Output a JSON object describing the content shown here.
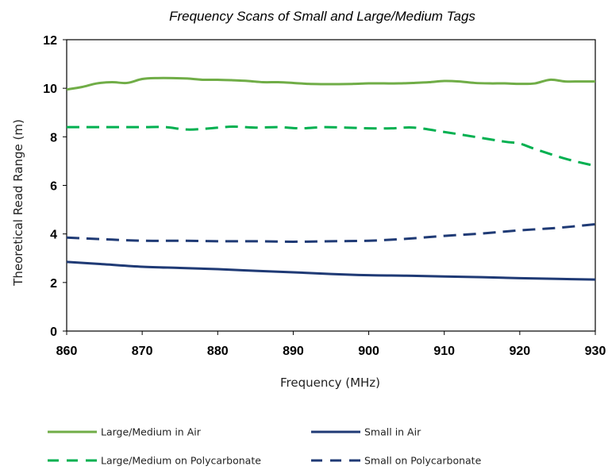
{
  "chart_data": {
    "type": "line",
    "title": "Frequency Scans of Small and Large/Medium Tags",
    "xlabel": "Frequency (MHz)",
    "ylabel": "Theoretical Read Range (m)",
    "xlim": [
      860,
      930
    ],
    "ylim": [
      0,
      12
    ],
    "x_ticks": [
      "860",
      "870",
      "880",
      "890",
      "900",
      "910",
      "920",
      "930"
    ],
    "y_ticks": [
      "0",
      "2",
      "4",
      "6",
      "8",
      "10",
      "12"
    ],
    "grid": false,
    "legend_position": "bottom",
    "series": [
      {
        "name": "Large/Medium in Air",
        "color": "#70ad47",
        "style": "solid",
        "x": [
          860,
          862,
          864,
          866,
          868,
          870,
          872,
          874,
          876,
          878,
          880,
          882,
          884,
          886,
          888,
          890,
          892,
          894,
          896,
          898,
          900,
          902,
          904,
          906,
          908,
          910,
          912,
          914,
          916,
          918,
          920,
          922,
          924,
          926,
          928,
          930
        ],
        "y": [
          9.95,
          10.05,
          10.2,
          10.25,
          10.22,
          10.38,
          10.42,
          10.42,
          10.4,
          10.35,
          10.35,
          10.33,
          10.3,
          10.25,
          10.25,
          10.22,
          10.18,
          10.17,
          10.17,
          10.18,
          10.2,
          10.2,
          10.2,
          10.22,
          10.25,
          10.3,
          10.28,
          10.22,
          10.2,
          10.2,
          10.18,
          10.2,
          10.35,
          10.28,
          10.28,
          10.28
        ]
      },
      {
        "name": "Small in Air",
        "color": "#1f3a75",
        "style": "solid",
        "x": [
          860,
          865,
          870,
          875,
          880,
          885,
          890,
          895,
          900,
          905,
          910,
          915,
          920,
          925,
          930
        ],
        "y": [
          2.85,
          2.75,
          2.65,
          2.6,
          2.55,
          2.48,
          2.42,
          2.35,
          2.3,
          2.28,
          2.25,
          2.22,
          2.18,
          2.15,
          2.12
        ]
      },
      {
        "name": "Large/Medium on Polycarbonate",
        "color": "#00b050",
        "style": "dashed",
        "x": [
          860,
          865,
          870,
          873,
          876,
          879,
          882,
          885,
          888,
          891,
          894,
          897,
          900,
          903,
          906,
          910,
          914,
          918,
          920,
          922,
          926,
          930
        ],
        "y": [
          8.4,
          8.4,
          8.4,
          8.4,
          8.3,
          8.35,
          8.42,
          8.38,
          8.4,
          8.35,
          8.4,
          8.38,
          8.35,
          8.35,
          8.38,
          8.2,
          8.0,
          7.8,
          7.72,
          7.5,
          7.1,
          6.8
        ]
      },
      {
        "name": "Small on Polycarbonate",
        "color": "#1f3a75",
        "style": "dashed",
        "x": [
          860,
          865,
          870,
          875,
          880,
          885,
          890,
          895,
          900,
          905,
          910,
          915,
          920,
          925,
          930
        ],
        "y": [
          3.85,
          3.78,
          3.72,
          3.72,
          3.7,
          3.7,
          3.68,
          3.7,
          3.72,
          3.8,
          3.92,
          4.02,
          4.15,
          4.25,
          4.4
        ]
      }
    ],
    "legend": [
      {
        "label": "Large/Medium in Air",
        "series": 0
      },
      {
        "label": "Small in Air",
        "series": 1
      },
      {
        "label": "Large/Medium on Polycarbonate",
        "series": 2
      },
      {
        "label": "Small on Polycarbonate",
        "series": 3
      }
    ]
  }
}
